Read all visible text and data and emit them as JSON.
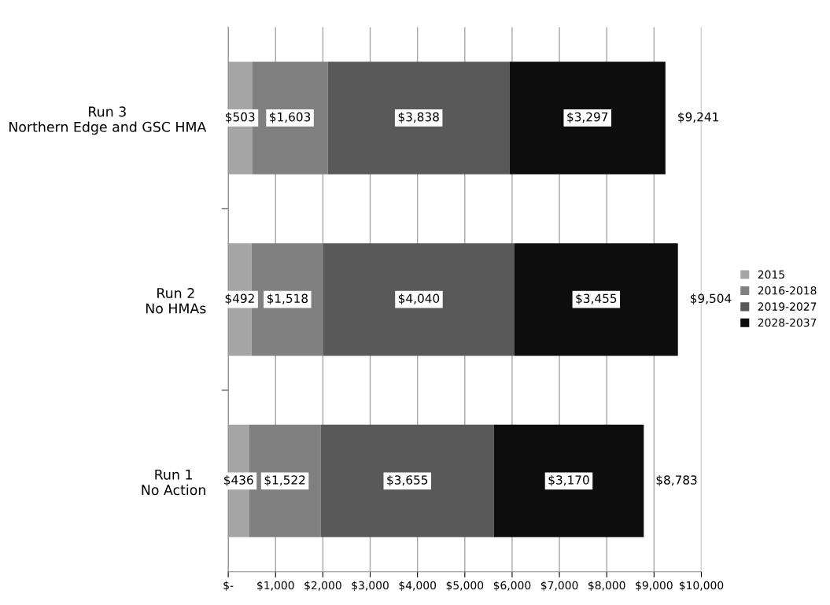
{
  "chart_data": {
    "type": "bar",
    "orientation": "horizontal",
    "stacked": true,
    "categories": [
      "Run 3\nNorthern Edge and GSC HMA",
      "Run 2\nNo HMAs",
      "Run 1\nNo Action"
    ],
    "series": [
      {
        "name": "2015",
        "color": "#a6a6a6",
        "values": [
          503,
          492,
          436
        ],
        "value_labels": [
          "$503",
          "$492",
          "$436"
        ]
      },
      {
        "name": "2016-2018",
        "color": "#808080",
        "values": [
          1603,
          1518,
          1522
        ],
        "value_labels": [
          "$1,603",
          "$1,518",
          "$1,522"
        ]
      },
      {
        "name": "2019-2027",
        "color": "#595959",
        "values": [
          3838,
          4040,
          3655
        ],
        "value_labels": [
          "$3,838",
          "$4,040",
          "$3,655"
        ]
      },
      {
        "name": "2028-2037",
        "color": "#0d0d0d",
        "values": [
          3297,
          3455,
          3170
        ],
        "value_labels": [
          "$3,297",
          "$3,455",
          "$3,170"
        ]
      }
    ],
    "totals": [
      "$9,241",
      "$9,504",
      "$8,783"
    ],
    "xlim": [
      0,
      10000
    ],
    "xticks": [
      {
        "value": 0,
        "label": "$-"
      },
      {
        "value": 1000,
        "label": "$1,000"
      },
      {
        "value": 2000,
        "label": "$2,000"
      },
      {
        "value": 3000,
        "label": "$3,000"
      },
      {
        "value": 4000,
        "label": "$4,000"
      },
      {
        "value": 5000,
        "label": "$5,000"
      },
      {
        "value": 6000,
        "label": "$6,000"
      },
      {
        "value": 7000,
        "label": "$7,000"
      },
      {
        "value": 8000,
        "label": "$8,000"
      },
      {
        "value": 9000,
        "label": "$9,000"
      },
      {
        "value": 10000,
        "label": "$10,000"
      }
    ],
    "grid": "x",
    "legend": "right"
  }
}
